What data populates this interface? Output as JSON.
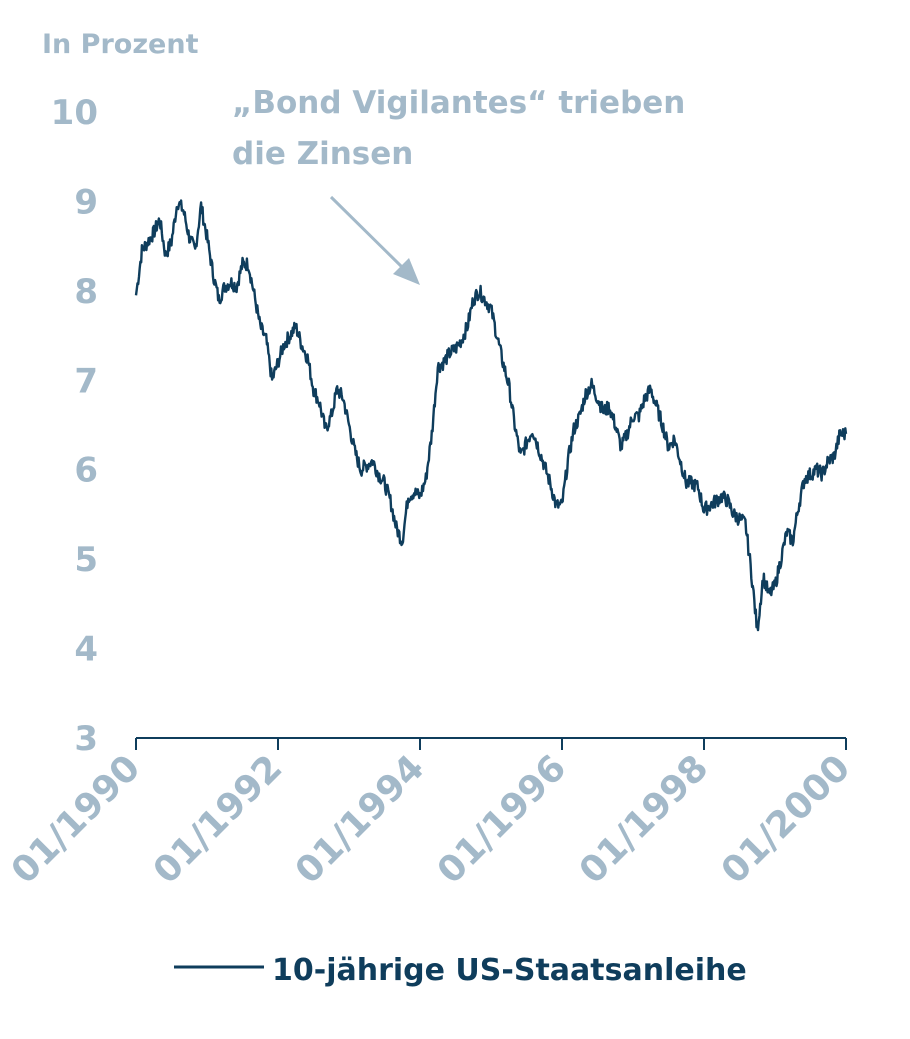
{
  "colors": {
    "series": "#0f3d5c",
    "axis_text": "#a3b9c9",
    "axis_line": "#0f3d5c",
    "annotation": "#a3b9c9"
  },
  "chart_data": {
    "type": "line",
    "ylabel": "In Prozent",
    "ylim": [
      3,
      10
    ],
    "yticks": [
      3,
      4,
      5,
      6,
      7,
      8,
      9,
      10
    ],
    "ytick_labels": [
      "3",
      "4",
      "5",
      "6",
      "7",
      "8",
      "9",
      "10"
    ],
    "xlim": [
      "1990-01",
      "2000-01"
    ],
    "xticks": [
      "1990-01",
      "1992-01",
      "1994-01",
      "1996-01",
      "1998-01",
      "2000-01"
    ],
    "xtick_labels": [
      "01/1990",
      "01/1992",
      "01/1994",
      "01/1996",
      "01/1998",
      "01/2000"
    ],
    "grid": false,
    "legend_position": "bottom",
    "annotation": {
      "lines": [
        "„Bond Vigilantes“ trieben",
        "die Zinsen"
      ],
      "points_to": [
        "1994-06",
        7.9
      ]
    },
    "series": [
      {
        "name": "10-jährige US-Staatsanleihe",
        "x": [
          "1990-01",
          "1990-02",
          "1990-03",
          "1990-04",
          "1990-05",
          "1990-06",
          "1990-07",
          "1990-08",
          "1990-09",
          "1990-10",
          "1990-11",
          "1990-12",
          "1991-01",
          "1991-02",
          "1991-03",
          "1991-04",
          "1991-05",
          "1991-06",
          "1991-07",
          "1991-08",
          "1991-09",
          "1991-10",
          "1991-11",
          "1991-12",
          "1992-01",
          "1992-02",
          "1992-03",
          "1992-04",
          "1992-05",
          "1992-06",
          "1992-07",
          "1992-08",
          "1992-09",
          "1992-10",
          "1992-11",
          "1992-12",
          "1993-01",
          "1993-02",
          "1993-03",
          "1993-04",
          "1993-05",
          "1993-06",
          "1993-07",
          "1993-08",
          "1993-09",
          "1993-10",
          "1993-11",
          "1993-12",
          "1994-01",
          "1994-02",
          "1994-03",
          "1994-04",
          "1994-05",
          "1994-06",
          "1994-07",
          "1994-08",
          "1994-09",
          "1994-10",
          "1994-11",
          "1994-12",
          "1995-01",
          "1995-02",
          "1995-03",
          "1995-04",
          "1995-05",
          "1995-06",
          "1995-07",
          "1995-08",
          "1995-09",
          "1995-10",
          "1995-11",
          "1995-12",
          "1996-01",
          "1996-02",
          "1996-03",
          "1996-04",
          "1996-05",
          "1996-06",
          "1996-07",
          "1996-08",
          "1996-09",
          "1996-10",
          "1996-11",
          "1996-12",
          "1997-01",
          "1997-02",
          "1997-03",
          "1997-04",
          "1997-05",
          "1997-06",
          "1997-07",
          "1997-08",
          "1997-09",
          "1997-10",
          "1997-11",
          "1997-12",
          "1998-01",
          "1998-02",
          "1998-03",
          "1998-04",
          "1998-05",
          "1998-06",
          "1998-07",
          "1998-08",
          "1998-09",
          "1998-10",
          "1998-11",
          "1998-12",
          "1999-01",
          "1999-02",
          "1999-03",
          "1999-04",
          "1999-05",
          "1999-06",
          "1999-07",
          "1999-08",
          "1999-09",
          "1999-10",
          "1999-11",
          "1999-12"
        ],
        "values": [
          7.95,
          8.45,
          8.55,
          8.65,
          8.8,
          8.4,
          8.55,
          9.0,
          8.9,
          8.6,
          8.45,
          8.95,
          8.6,
          8.2,
          7.9,
          8.05,
          8.1,
          8.05,
          8.3,
          8.3,
          7.95,
          7.6,
          7.45,
          7.0,
          7.2,
          7.4,
          7.5,
          7.6,
          7.4,
          7.25,
          6.9,
          6.75,
          6.45,
          6.6,
          6.9,
          6.8,
          6.5,
          6.2,
          6.0,
          6.05,
          6.1,
          5.95,
          5.85,
          5.65,
          5.35,
          5.2,
          5.7,
          5.75,
          5.7,
          5.9,
          6.4,
          7.15,
          7.2,
          7.3,
          7.35,
          7.45,
          7.6,
          7.9,
          8.0,
          7.9,
          7.8,
          7.5,
          7.2,
          6.95,
          6.5,
          6.15,
          6.3,
          6.45,
          6.25,
          6.05,
          5.85,
          5.6,
          5.6,
          6.1,
          6.45,
          6.6,
          6.85,
          6.95,
          6.8,
          6.65,
          6.7,
          6.5,
          6.25,
          6.4,
          6.6,
          6.6,
          6.8,
          6.9,
          6.7,
          6.5,
          6.25,
          6.35,
          6.1,
          5.85,
          5.85,
          5.8,
          5.55,
          5.6,
          5.65,
          5.7,
          5.65,
          5.5,
          5.45,
          5.4,
          4.85,
          4.2,
          4.8,
          4.6,
          4.7,
          5.0,
          5.3,
          5.2,
          5.6,
          5.9,
          5.95,
          6.0,
          5.95,
          6.1,
          6.15,
          6.4
        ]
      }
    ]
  }
}
